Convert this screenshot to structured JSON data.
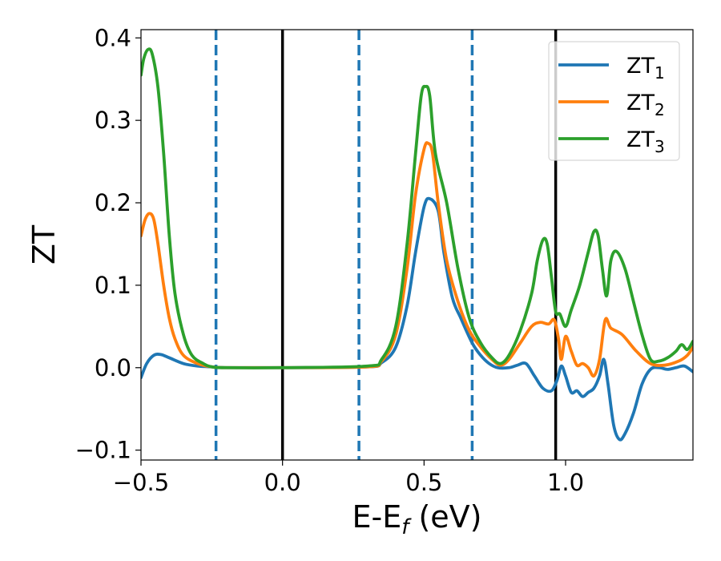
{
  "chart_data": {
    "type": "line",
    "title": "",
    "xlabel": {
      "main": "E-E",
      "sub": "f",
      "unit": " (eV)"
    },
    "ylabel": "ZT",
    "xlim": [
      -0.5,
      1.45
    ],
    "ylim": [
      -0.112,
      0.41
    ],
    "xticks": [
      -0.5,
      0.0,
      0.5,
      1.0
    ],
    "xtick_labels": [
      "−0.5",
      "0.0",
      "0.5",
      "1.0"
    ],
    "yticks": [
      -0.1,
      0.0,
      0.1,
      0.2,
      0.3,
      0.4
    ],
    "ytick_labels": [
      "−0.1",
      "0.0",
      "0.1",
      "0.2",
      "0.3",
      "0.4"
    ],
    "grid": false,
    "legend_position": "top-right",
    "vertical_lines": [
      {
        "x": -0.235,
        "style": "dashed",
        "color": "#1f77b4"
      },
      {
        "x": 0.0,
        "style": "solid",
        "color": "#000000"
      },
      {
        "x": 0.27,
        "style": "dashed",
        "color": "#1f77b4"
      },
      {
        "x": 0.67,
        "style": "dashed",
        "color": "#1f77b4"
      },
      {
        "x": 0.965,
        "style": "solid",
        "color": "#000000"
      }
    ],
    "series": [
      {
        "name": "ZT",
        "sub": "1",
        "color": "#1f77b4",
        "points": [
          [
            -0.5,
            -0.012
          ],
          [
            -0.48,
            0.005
          ],
          [
            -0.455,
            0.015
          ],
          [
            -0.43,
            0.016
          ],
          [
            -0.4,
            0.012
          ],
          [
            -0.35,
            0.005
          ],
          [
            -0.3,
            0.002
          ],
          [
            -0.25,
            0.001
          ],
          [
            -0.2,
            0.0
          ],
          [
            0.0,
            0.0
          ],
          [
            0.3,
            0.001
          ],
          [
            0.35,
            0.006
          ],
          [
            0.4,
            0.025
          ],
          [
            0.44,
            0.075
          ],
          [
            0.47,
            0.14
          ],
          [
            0.5,
            0.195
          ],
          [
            0.52,
            0.205
          ],
          [
            0.55,
            0.19
          ],
          [
            0.57,
            0.14
          ],
          [
            0.6,
            0.085
          ],
          [
            0.63,
            0.06
          ],
          [
            0.67,
            0.03
          ],
          [
            0.7,
            0.015
          ],
          [
            0.73,
            0.005
          ],
          [
            0.76,
            0.0
          ],
          [
            0.8,
            0.0
          ],
          [
            0.83,
            0.003
          ],
          [
            0.86,
            0.005
          ],
          [
            0.89,
            -0.01
          ],
          [
            0.92,
            -0.025
          ],
          [
            0.95,
            -0.028
          ],
          [
            0.97,
            -0.015
          ],
          [
            0.985,
            0.002
          ],
          [
            1.0,
            -0.01
          ],
          [
            1.02,
            -0.03
          ],
          [
            1.04,
            -0.028
          ],
          [
            1.06,
            -0.035
          ],
          [
            1.08,
            -0.03
          ],
          [
            1.1,
            -0.025
          ],
          [
            1.12,
            -0.01
          ],
          [
            1.135,
            0.01
          ],
          [
            1.15,
            -0.02
          ],
          [
            1.17,
            -0.07
          ],
          [
            1.19,
            -0.087
          ],
          [
            1.21,
            -0.08
          ],
          [
            1.24,
            -0.055
          ],
          [
            1.27,
            -0.02
          ],
          [
            1.3,
            -0.002
          ],
          [
            1.33,
            0.0
          ],
          [
            1.36,
            -0.002
          ],
          [
            1.39,
            0.0
          ],
          [
            1.42,
            0.002
          ],
          [
            1.45,
            -0.005
          ]
        ]
      },
      {
        "name": "ZT",
        "sub": "2",
        "color": "#ff7f0e",
        "points": [
          [
            -0.5,
            0.16
          ],
          [
            -0.485,
            0.18
          ],
          [
            -0.47,
            0.187
          ],
          [
            -0.455,
            0.18
          ],
          [
            -0.44,
            0.15
          ],
          [
            -0.42,
            0.1
          ],
          [
            -0.4,
            0.06
          ],
          [
            -0.38,
            0.035
          ],
          [
            -0.35,
            0.015
          ],
          [
            -0.3,
            0.005
          ],
          [
            -0.25,
            0.001
          ],
          [
            -0.2,
            0.0
          ],
          [
            0.0,
            0.0
          ],
          [
            0.3,
            0.001
          ],
          [
            0.35,
            0.008
          ],
          [
            0.4,
            0.04
          ],
          [
            0.44,
            0.12
          ],
          [
            0.47,
            0.21
          ],
          [
            0.5,
            0.265
          ],
          [
            0.515,
            0.272
          ],
          [
            0.53,
            0.26
          ],
          [
            0.55,
            0.2
          ],
          [
            0.58,
            0.13
          ],
          [
            0.62,
            0.08
          ],
          [
            0.66,
            0.045
          ],
          [
            0.7,
            0.025
          ],
          [
            0.74,
            0.01
          ],
          [
            0.77,
            0.003
          ],
          [
            0.8,
            0.01
          ],
          [
            0.84,
            0.03
          ],
          [
            0.88,
            0.05
          ],
          [
            0.91,
            0.055
          ],
          [
            0.94,
            0.053
          ],
          [
            0.96,
            0.058
          ],
          [
            0.975,
            0.035
          ],
          [
            0.985,
            0.01
          ],
          [
            1.0,
            0.038
          ],
          [
            1.02,
            0.02
          ],
          [
            1.04,
            0.003
          ],
          [
            1.06,
            0.005
          ],
          [
            1.08,
            0.0
          ],
          [
            1.1,
            -0.01
          ],
          [
            1.12,
            0.01
          ],
          [
            1.14,
            0.058
          ],
          [
            1.16,
            0.048
          ],
          [
            1.2,
            0.04
          ],
          [
            1.25,
            0.02
          ],
          [
            1.3,
            0.005
          ],
          [
            1.35,
            0.003
          ],
          [
            1.4,
            0.008
          ],
          [
            1.43,
            0.015
          ],
          [
            1.45,
            0.025
          ]
        ]
      },
      {
        "name": "ZT",
        "sub": "3",
        "color": "#2ca02c",
        "points": [
          [
            -0.5,
            0.355
          ],
          [
            -0.49,
            0.375
          ],
          [
            -0.475,
            0.386
          ],
          [
            -0.46,
            0.38
          ],
          [
            -0.44,
            0.34
          ],
          [
            -0.42,
            0.26
          ],
          [
            -0.4,
            0.16
          ],
          [
            -0.38,
            0.09
          ],
          [
            -0.35,
            0.04
          ],
          [
            -0.32,
            0.015
          ],
          [
            -0.28,
            0.005
          ],
          [
            -0.25,
            0.001
          ],
          [
            -0.2,
            0.0
          ],
          [
            0.0,
            0.0
          ],
          [
            0.3,
            0.002
          ],
          [
            0.35,
            0.01
          ],
          [
            0.4,
            0.05
          ],
          [
            0.44,
            0.15
          ],
          [
            0.47,
            0.26
          ],
          [
            0.49,
            0.33
          ],
          [
            0.505,
            0.341
          ],
          [
            0.52,
            0.33
          ],
          [
            0.54,
            0.26
          ],
          [
            0.58,
            0.2
          ],
          [
            0.62,
            0.12
          ],
          [
            0.66,
            0.06
          ],
          [
            0.7,
            0.03
          ],
          [
            0.74,
            0.012
          ],
          [
            0.77,
            0.005
          ],
          [
            0.8,
            0.015
          ],
          [
            0.84,
            0.045
          ],
          [
            0.88,
            0.09
          ],
          [
            0.9,
            0.13
          ],
          [
            0.92,
            0.155
          ],
          [
            0.935,
            0.15
          ],
          [
            0.95,
            0.11
          ],
          [
            0.965,
            0.068
          ],
          [
            0.98,
            0.065
          ],
          [
            1.0,
            0.05
          ],
          [
            1.02,
            0.07
          ],
          [
            1.05,
            0.1
          ],
          [
            1.08,
            0.14
          ],
          [
            1.1,
            0.165
          ],
          [
            1.115,
            0.16
          ],
          [
            1.13,
            0.12
          ],
          [
            1.145,
            0.087
          ],
          [
            1.16,
            0.13
          ],
          [
            1.18,
            0.141
          ],
          [
            1.21,
            0.12
          ],
          [
            1.24,
            0.08
          ],
          [
            1.27,
            0.04
          ],
          [
            1.3,
            0.01
          ],
          [
            1.33,
            0.008
          ],
          [
            1.36,
            0.012
          ],
          [
            1.39,
            0.02
          ],
          [
            1.41,
            0.028
          ],
          [
            1.43,
            0.022
          ],
          [
            1.45,
            0.032
          ]
        ]
      }
    ]
  }
}
